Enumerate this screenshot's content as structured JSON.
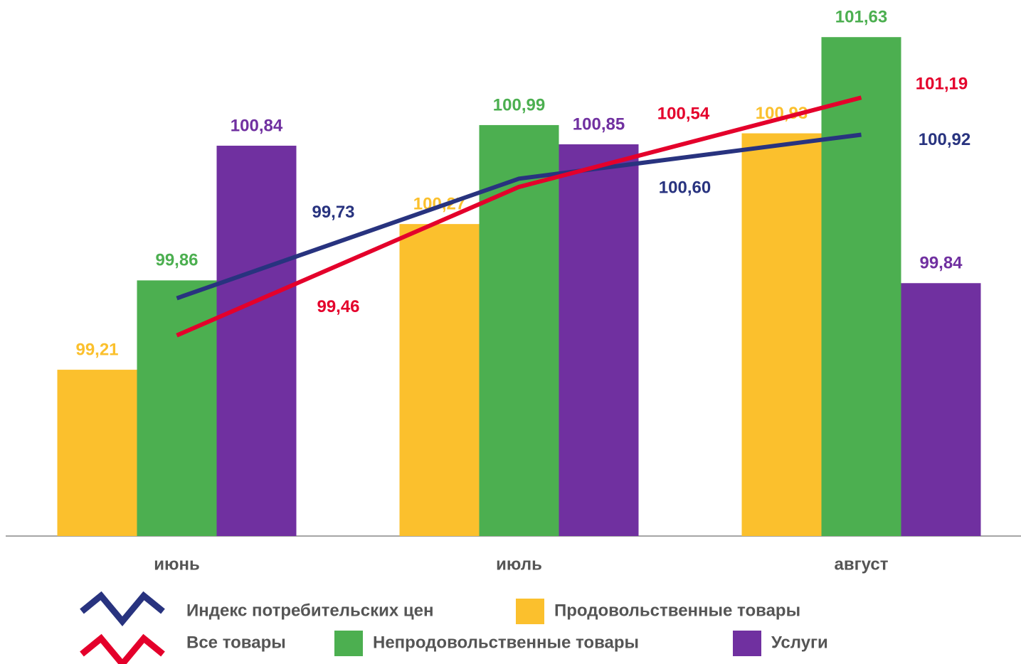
{
  "chart_data": {
    "type": "bar",
    "categories": [
      "июнь",
      "июль",
      "август"
    ],
    "ylim": [
      98,
      101.9
    ],
    "series": [
      {
        "name": "Продовольственные товары",
        "color": "#fbc02d",
        "values": [
          99.21,
          100.27,
          100.93
        ],
        "value_labels": [
          "99,21",
          "100,27",
          "100,93"
        ]
      },
      {
        "name": "Непродовольственные товары",
        "color": "#4caf50",
        "values": [
          99.86,
          100.99,
          101.63
        ],
        "value_labels": [
          "99,86",
          "100,99",
          "101,63"
        ]
      },
      {
        "name": "Услуги",
        "color": "#7030a0",
        "values": [
          100.84,
          100.85,
          99.84
        ],
        "value_labels": [
          "100,84",
          "100,85",
          "99,84"
        ]
      },
      {
        "name": "Индекс потребительских цен",
        "type": "line",
        "color": "#28337f",
        "values": [
          99.73,
          100.6,
          100.92
        ],
        "value_labels": [
          "99,73",
          "100,60",
          "100,92"
        ]
      },
      {
        "name": "Все товары",
        "type": "line",
        "color": "#e4002b",
        "values": [
          99.46,
          100.54,
          101.19
        ],
        "value_labels": [
          "99,46",
          "100,54",
          "101,19"
        ]
      }
    ]
  }
}
